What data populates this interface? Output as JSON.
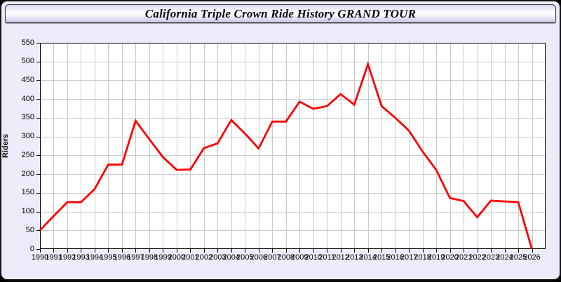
{
  "window": {
    "title": "California Triple Crown Ride History GRAND TOUR"
  },
  "colors": {
    "page_background": "#ececfa",
    "plot_background": "#ffffff",
    "grid": "#c9c9c9",
    "axis": "#000000",
    "line": "#ff0000"
  },
  "chart_data": {
    "type": "line",
    "title": "California Triple Crown Ride History GRAND TOUR",
    "xlabel": "",
    "ylabel": "Riders",
    "xlim": [
      1990,
      2027
    ],
    "ylim": [
      0,
      550
    ],
    "ytick_step": 50,
    "yticks": [
      0,
      50,
      100,
      150,
      200,
      250,
      300,
      350,
      400,
      450,
      500,
      550
    ],
    "grid": true,
    "legend_position": "none",
    "x": [
      1990,
      1991,
      1992,
      1993,
      1994,
      1995,
      1996,
      1997,
      1998,
      1999,
      2000,
      2001,
      2002,
      2003,
      2004,
      2005,
      2006,
      2007,
      2008,
      2009,
      2010,
      2011,
      2012,
      2013,
      2014,
      2015,
      2016,
      2017,
      2018,
      2019,
      2020,
      2021,
      2022,
      2023,
      2024,
      2025,
      2026
    ],
    "series": [
      {
        "name": "Riders",
        "color": "#ff0000",
        "values": [
          50,
          88,
          125,
          125,
          160,
          225,
          225,
          342,
          293,
          245,
          211,
          212,
          269,
          282,
          344,
          308,
          268,
          340,
          340,
          393,
          374,
          381,
          413,
          385,
          493,
          381,
          350,
          316,
          260,
          211,
          136,
          128,
          85,
          129,
          127,
          125,
          0
        ]
      }
    ]
  }
}
